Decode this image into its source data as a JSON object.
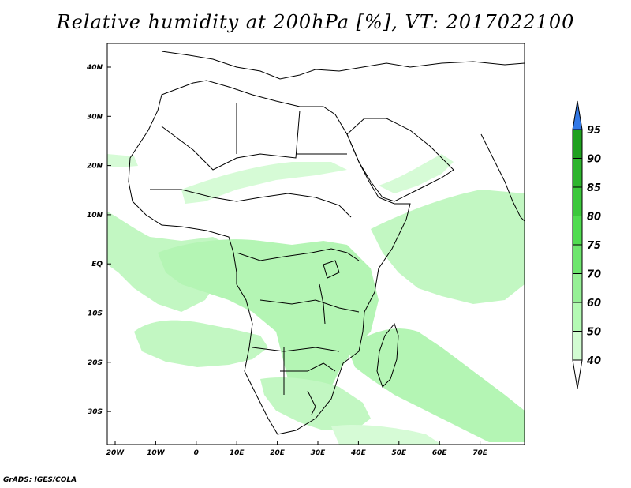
{
  "title": "Relative humidity at 200hPa [%], VT: 2017022100",
  "credit": "GrADS: IGES/COLA",
  "map": {
    "variable": "Relative humidity",
    "level": "200hPa",
    "units": "%",
    "valid_time": "2017022100",
    "lon_ticks": [
      "20W",
      "10W",
      "0",
      "10E",
      "20E",
      "30E",
      "40E",
      "50E",
      "60E",
      "70E"
    ],
    "lat_ticks": [
      "40N",
      "30N",
      "20N",
      "10N",
      "EQ",
      "10S",
      "20S",
      "30S"
    ]
  },
  "colorbar": {
    "levels": [
      "95",
      "90",
      "85",
      "80",
      "75",
      "70",
      "60",
      "50",
      "40"
    ],
    "colors": [
      "#1ea01e",
      "#2db42d",
      "#3cc83c",
      "#50dc50",
      "#6ee66e",
      "#96f096",
      "#b4fab4",
      "#d2fcd2",
      "#f0fff0"
    ],
    "over_color": "#3278e6",
    "under_color": "#ffffff"
  }
}
